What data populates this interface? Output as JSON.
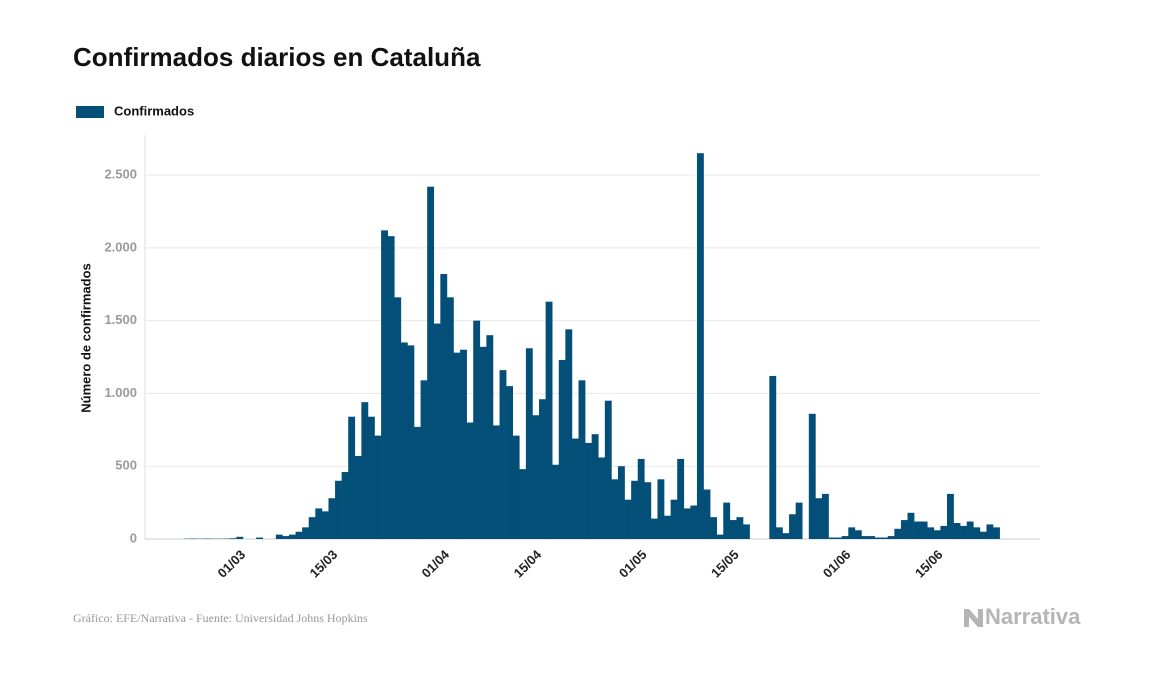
{
  "chart_data": {
    "type": "bar",
    "title": "Confirmados diarios en Cataluña",
    "legend": "Confirmados",
    "y_label": "Número de confirmados",
    "source": "Gráfico: EFE/Narrativa - Fuente: Universidad Johns Hopkins",
    "logo": "Narrativa",
    "color": "#034f78",
    "grid": true,
    "ylim": [
      0,
      2775
    ],
    "yticks": [
      0,
      500,
      {
        "value": 1000,
        "label": "1.000"
      },
      {
        "value": 1500,
        "label": "1.500"
      },
      {
        "value": 2000,
        "label": "2.000"
      },
      {
        "value": 2500,
        "label": "2.500"
      }
    ],
    "categories": [
      null,
      null,
      null,
      null,
      null,
      null,
      null,
      null,
      "01/03",
      null,
      null,
      null,
      null,
      null,
      null,
      null,
      null,
      null,
      null,
      null,
      null,
      null,
      "15/03",
      null,
      null,
      null,
      null,
      null,
      null,
      null,
      null,
      null,
      null,
      null,
      null,
      null,
      null,
      null,
      null,
      "01/04",
      null,
      null,
      null,
      null,
      null,
      null,
      null,
      null,
      null,
      null,
      null,
      null,
      null,
      "15/04",
      null,
      null,
      null,
      null,
      null,
      null,
      null,
      null,
      null,
      null,
      null,
      null,
      null,
      null,
      null,
      "01/05",
      null,
      null,
      null,
      null,
      null,
      null,
      null,
      null,
      null,
      null,
      null,
      null,
      null,
      "15/05",
      null,
      null,
      null,
      null,
      null,
      null,
      null,
      null,
      null,
      null,
      null,
      null,
      null,
      null,
      null,
      null,
      "01/06",
      null,
      null,
      null,
      null,
      null,
      null,
      null,
      null,
      null,
      null,
      null,
      null,
      null,
      "15/06",
      null,
      null,
      null,
      null,
      null,
      null,
      null,
      null,
      null
    ],
    "values": [
      2,
      3,
      2,
      3,
      2,
      2,
      3,
      5,
      15,
      0,
      0,
      10,
      0,
      0,
      30,
      20,
      30,
      50,
      80,
      150,
      210,
      190,
      280,
      400,
      460,
      840,
      570,
      940,
      840,
      710,
      2120,
      2080,
      1660,
      1350,
      1330,
      770,
      1090,
      2420,
      1480,
      1820,
      1660,
      1280,
      1300,
      800,
      1500,
      1320,
      1400,
      780,
      1160,
      1050,
      710,
      480,
      1310,
      850,
      960,
      1630,
      510,
      1230,
      1440,
      690,
      1090,
      660,
      720,
      560,
      950,
      410,
      500,
      270,
      400,
      550,
      390,
      140,
      410,
      160,
      270,
      550,
      210,
      230,
      2650,
      340,
      150,
      30,
      250,
      130,
      150,
      100,
      0,
      0,
      0,
      1120,
      80,
      40,
      170,
      250,
      0,
      860,
      280,
      310,
      10,
      10,
      20,
      80,
      60,
      20,
      20,
      10,
      10,
      20,
      70,
      130,
      180,
      120,
      120,
      80,
      60,
      90,
      310,
      110,
      90,
      120,
      80,
      50,
      100,
      80
    ]
  }
}
